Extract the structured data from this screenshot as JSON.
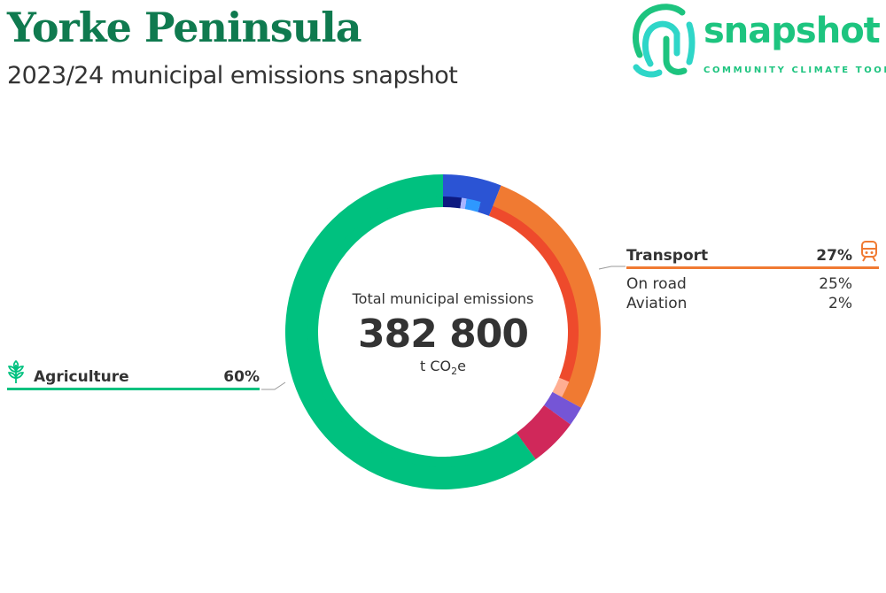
{
  "header": {
    "title": "Yorke Peninsula",
    "subtitle": "2023/24 municipal emissions snapshot"
  },
  "logo": {
    "word": "snapshot",
    "tagline": "COMMUNITY CLIMATE TOOL",
    "icon": "fingerprint-icon",
    "color": "#1dc47f"
  },
  "chart_data": {
    "type": "pie",
    "center": {
      "title": "Total municipal emissions",
      "value": "382 800",
      "unit_prefix": "t CO",
      "unit_sub": "2",
      "unit_suffix": "e"
    },
    "outer": [
      {
        "value": 6,
        "color": "#2b54d4"
      },
      {
        "value": 27,
        "color": "#f07a32"
      },
      {
        "value": 2,
        "color": "#7555d6"
      },
      {
        "value": 5,
        "color": "#d0285a"
      },
      {
        "value": 60,
        "color": "#00c17f"
      }
    ],
    "inner": [
      {
        "value": 2.2,
        "color": "#0d1a80"
      },
      {
        "value": 0.6,
        "color": "#a7b3ff"
      },
      {
        "value": 1.7,
        "color": "#2e98ff"
      },
      {
        "value": 1.5,
        "color": "#2b54d4"
      },
      {
        "value": 25,
        "color": "#ee4a2c"
      },
      {
        "value": 2,
        "color": "#ffae92"
      },
      {
        "value": 2,
        "color": "#7555d6"
      },
      {
        "value": 5,
        "color": "#d0285a"
      },
      {
        "value": 60,
        "color": "#00c17f"
      }
    ],
    "legends": {
      "transport": {
        "label": "Transport",
        "pct": "27%",
        "color": "#f07a32",
        "icon": "train-icon",
        "items": [
          {
            "label": "On road",
            "pct": "25%"
          },
          {
            "label": "Aviation",
            "pct": "2%"
          }
        ]
      },
      "agriculture": {
        "label": "Agriculture",
        "pct": "60%",
        "color": "#00c17f",
        "icon": "wheat-icon"
      }
    }
  }
}
